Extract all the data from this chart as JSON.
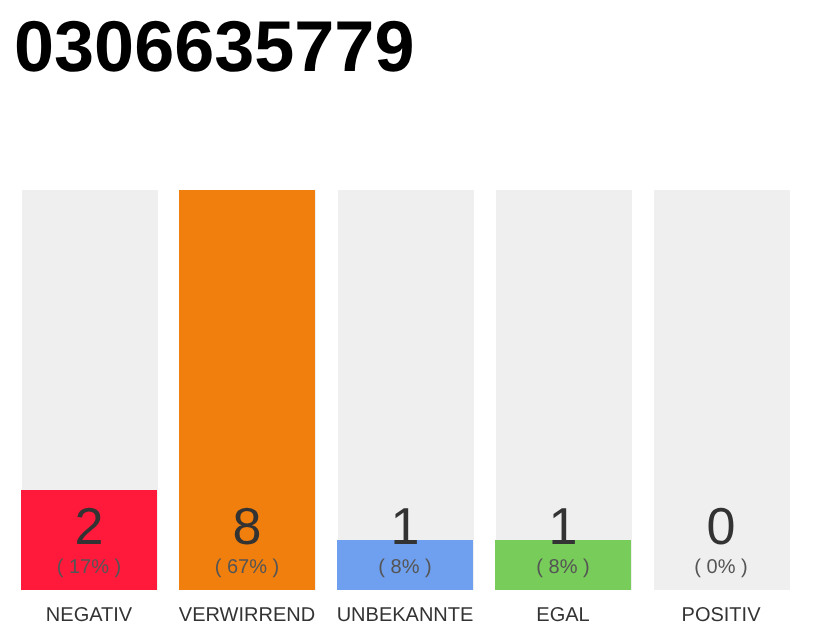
{
  "chart_data": {
    "type": "bar",
    "title": "0306635779",
    "categories": [
      "NEGATIV",
      "VERWIRREND",
      "UNBEKANNTE",
      "EGAL",
      "POSITIV"
    ],
    "values": [
      2,
      8,
      1,
      1,
      0
    ],
    "colors": [
      "#ff1a3c",
      "#f07f0e",
      "#6fa0ef",
      "#77cc5a",
      "#cccccc"
    ],
    "value_labels": [
      "2\n( 17% )",
      "8\n( 67% )",
      "1\n( 8% )",
      "1\n( 8% )",
      "0\n( 0% )"
    ]
  }
}
